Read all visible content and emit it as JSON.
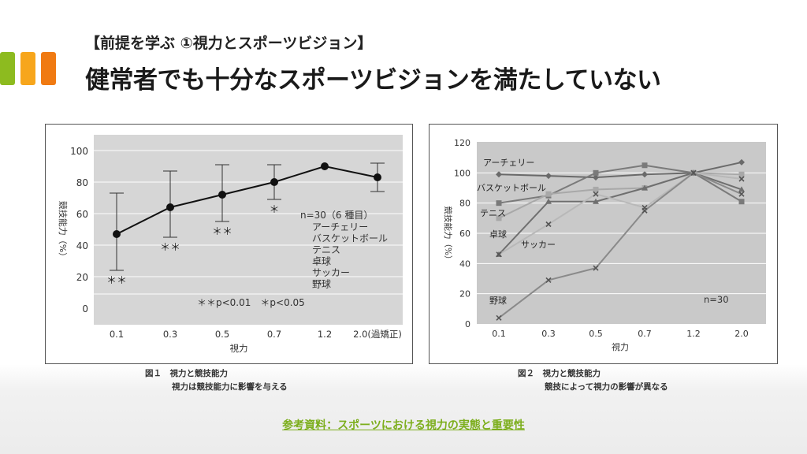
{
  "header": {
    "subtitle": "【前提を学ぶ ①視力とスポーツビジョン】",
    "title": "健常者でも十分なスポーツビジョンを満たしていない",
    "accent_colors": [
      "#8dbb1f",
      "#f7a61c",
      "#f07a12"
    ]
  },
  "figure1": {
    "caption_line1": "図１　視力と競技能力",
    "caption_line2": "視力は競技能力に影響を与える",
    "chart_data": {
      "type": "line",
      "title": "",
      "xlabel": "視力",
      "ylabel": "競技能力（%）",
      "categories": [
        "0.1",
        "0.3",
        "0.5",
        "0.7",
        "1.2",
        "2.0(過矯正)"
      ],
      "values": [
        47,
        64,
        72,
        80,
        90,
        83
      ],
      "error_low": [
        24,
        45,
        55,
        69,
        90,
        74
      ],
      "error_high": [
        73,
        87,
        91,
        91,
        90,
        92
      ],
      "significance": [
        "＊＊",
        "＊＊",
        "＊＊",
        "＊",
        "",
        ""
      ],
      "ylim": [
        0,
        100
      ],
      "yticks": [
        "0",
        "20",
        "40",
        "60",
        "80",
        "100"
      ],
      "annotation_n": "n=30（6 種目）",
      "sports": [
        "アーチェリー",
        "バスケットボール",
        "テニス",
        "卓球",
        "サッカー",
        "野球"
      ],
      "legend_note": "＊＊p<0.01　＊p<0.05"
    }
  },
  "figure2": {
    "caption_line1": "図２　視力と競技能力",
    "caption_line2": "競技によって視力の影響が異なる",
    "chart_data": {
      "type": "line",
      "title": "",
      "xlabel": "視力",
      "ylabel": "競技能力（%）",
      "categories": [
        "0.1",
        "0.3",
        "0.5",
        "0.7",
        "1.2",
        "2.0"
      ],
      "ylim": [
        0,
        120
      ],
      "yticks": [
        "0",
        "20",
        "40",
        "60",
        "80",
        "100",
        "120"
      ],
      "annotation_n": "n=30",
      "series": [
        {
          "name": "アーチェリー",
          "values": [
            99,
            98,
            97,
            99,
            100,
            107
          ],
          "color": "#6a6a6a"
        },
        {
          "name": "バスケットボール",
          "values": [
            80,
            85,
            100,
            105,
            100,
            81
          ],
          "color": "#7a7a7a"
        },
        {
          "name": "テニス",
          "values": [
            70,
            86,
            89,
            90,
            100,
            99
          ],
          "color": "#a8a8a8"
        },
        {
          "name": "卓球",
          "values": [
            46,
            81,
            81,
            90,
            100,
            89
          ],
          "color": "#6f6f6f"
        },
        {
          "name": "サッカー",
          "values": [
            46,
            66,
            86,
            77,
            100,
            96
          ],
          "color": "#b8b8b8"
        },
        {
          "name": "野球",
          "values": [
            4,
            29,
            37,
            75,
            100,
            86
          ],
          "color": "#8a8a8a"
        }
      ]
    }
  },
  "reference": {
    "label": "参考資料：スポーツにおける視力の実態と重要性",
    "color": "#7cae1c"
  }
}
